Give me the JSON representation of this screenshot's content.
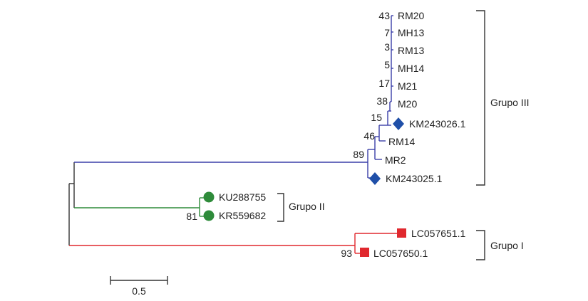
{
  "colors": {
    "grupo_III_branch": "#3a3fa8",
    "grupo_II_branch": "#2e8b3a",
    "grupo_I_branch": "#e0282e",
    "root_branch": "#333333",
    "diamond_marker": "#1f4fa8",
    "circle_marker": "#2e8b3a",
    "square_marker": "#e0282e"
  },
  "taxa": {
    "rm20": "RM20",
    "mh13": "MH13",
    "rm13": "RM13",
    "mh14": "MH14",
    "m21": "M21",
    "m20": "M20",
    "km243026": "KM243026.1",
    "rm14": "RM14",
    "mr2": "MR2",
    "km243025": "KM243025.1",
    "ku288755": "KU288755",
    "kr559682": "KR559682",
    "lc057651": "LC057651.1",
    "lc057650": "LC057650.1"
  },
  "bootstrap": {
    "b43": "43",
    "b7": "7",
    "b3": "3",
    "b5": "5",
    "b17": "17",
    "b38": "38",
    "b15": "15",
    "b46": "46",
    "b89": "89",
    "b81": "81",
    "b93": "93"
  },
  "groups": {
    "grupo_III": "Grupo III",
    "grupo_II": "Grupo II",
    "grupo_I": "Grupo I"
  },
  "scale_bar": {
    "label": "0.5"
  },
  "markers": {
    "km243026": "diamond",
    "km243025": "diamond",
    "ku288755": "circle",
    "kr559682": "circle",
    "lc057651": "square",
    "lc057650": "square"
  }
}
